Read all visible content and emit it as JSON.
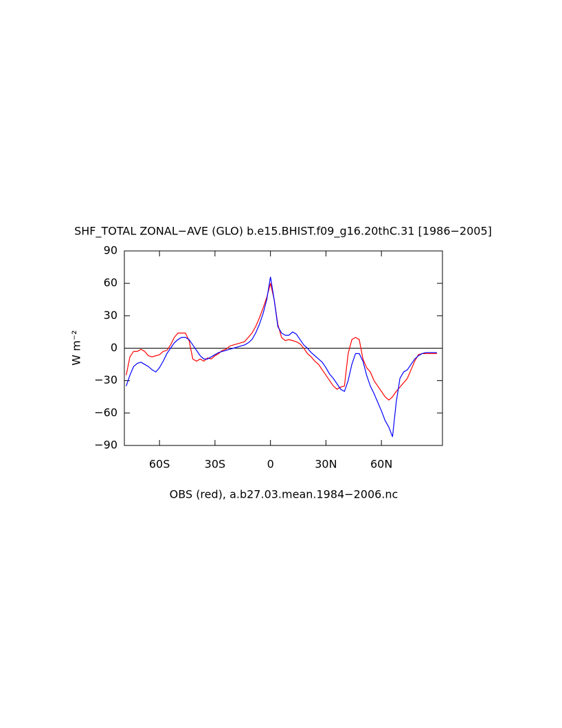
{
  "chart_data": {
    "type": "line",
    "title": "SHF_TOTAL ZONAL−AVE (GLO) b.e15.BHIST.f09_g16.20thC.31 [1986−2005]",
    "xlabel": "OBS (red), a.b27.03.mean.1984−2006.nc",
    "ylabel": "W m⁻²",
    "x": [
      -78,
      -76,
      -74,
      -72,
      -70,
      -68,
      -66,
      -64,
      -62,
      -60,
      -58,
      -56,
      -54,
      -52,
      -50,
      -48,
      -46,
      -44,
      -42,
      -40,
      -38,
      -36,
      -34,
      -32,
      -30,
      -28,
      -26,
      -24,
      -22,
      -20,
      -18,
      -16,
      -14,
      -12,
      -10,
      -8,
      -6,
      -4,
      -2,
      0,
      2,
      4,
      6,
      8,
      10,
      12,
      14,
      16,
      18,
      20,
      22,
      24,
      26,
      28,
      30,
      32,
      34,
      36,
      38,
      40,
      42,
      44,
      46,
      48,
      50,
      52,
      54,
      56,
      58,
      60,
      62,
      64,
      66,
      68,
      70,
      72,
      74,
      76,
      78,
      80,
      82,
      84,
      86,
      88,
      90
    ],
    "series": [
      {
        "color": "#ff0000",
        "values": [
          -25,
          -8,
          -3,
          -3,
          -1,
          -3,
          -7,
          -8,
          -7,
          -6,
          -3,
          -2,
          3,
          10,
          14,
          14,
          14,
          7,
          -10,
          -12,
          -10,
          -12,
          -9,
          -10,
          -7,
          -5,
          -2,
          -1,
          2,
          3,
          4,
          5,
          6,
          10,
          14,
          20,
          28,
          37,
          47,
          60,
          45,
          22,
          10,
          7,
          8,
          7,
          6,
          4,
          0,
          -5,
          -8,
          -12,
          -15,
          -20,
          -25,
          -30,
          -35,
          -38,
          -36,
          -35,
          -5,
          8,
          10,
          8,
          -10,
          -18,
          -22,
          -30,
          -35,
          -40,
          -45,
          -48,
          -45,
          -40,
          -36,
          -32,
          -28,
          -20,
          -12,
          -6,
          -5,
          -5,
          -5,
          -5,
          -5
        ]
      },
      {
        "color": "#0000ff",
        "values": [
          -35,
          -25,
          -17,
          -14,
          -13,
          -15,
          -17,
          -20,
          -22,
          -18,
          -12,
          -5,
          0,
          5,
          8,
          10,
          10,
          8,
          3,
          -2,
          -7,
          -10,
          -10,
          -8,
          -6,
          -4,
          -3,
          -2,
          -1,
          0,
          1,
          2,
          3,
          5,
          8,
          14,
          22,
          32,
          45,
          66,
          45,
          20,
          14,
          12,
          12,
          15,
          13,
          8,
          3,
          0,
          -4,
          -7,
          -10,
          -13,
          -18,
          -24,
          -28,
          -33,
          -38,
          -40,
          -30,
          -15,
          -5,
          -5,
          -12,
          -25,
          -35,
          -42,
          -50,
          -58,
          -67,
          -73,
          -82,
          -50,
          -28,
          -22,
          -20,
          -15,
          -10,
          -7,
          -5,
          -4,
          -4,
          -4,
          -4
        ]
      }
    ],
    "xlim": [
      -79,
      93
    ],
    "xticks": [
      {
        "value": -60,
        "label": "60S"
      },
      {
        "value": -30,
        "label": "30S"
      },
      0,
      {
        "value": 30,
        "label": "30N"
      },
      {
        "value": 60,
        "label": "60N"
      }
    ],
    "ylim": [
      -90,
      90
    ],
    "yticks": [
      {
        "value": -90,
        "label": "−90"
      },
      {
        "value": -60,
        "label": "−60"
      },
      {
        "value": -30,
        "label": "−30"
      },
      0,
      30,
      60,
      90
    ],
    "reference_line": 0
  }
}
